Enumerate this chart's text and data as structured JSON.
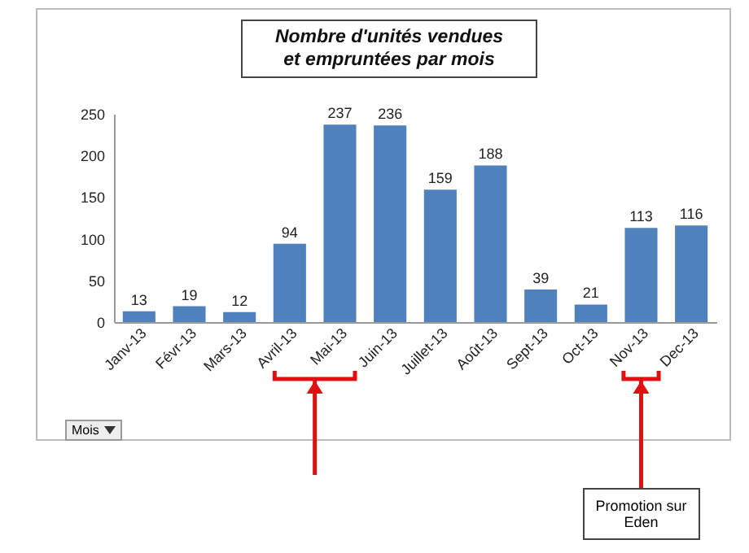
{
  "chart_data": {
    "type": "bar",
    "title": "Nombre d'unités vendues\net empruntées par mois",
    "categories": [
      "Janv-13",
      "Févr-13",
      "Mars-13",
      "Avril-13",
      "Mai-13",
      "Juin-13",
      "Juillet-13",
      "Août-13",
      "Sept-13",
      "Oct-13",
      "Nov-13",
      "Dec-13"
    ],
    "values": [
      13,
      19,
      12,
      94,
      237,
      236,
      159,
      188,
      39,
      21,
      113,
      116
    ],
    "color": "#4f81bd",
    "ylim": [
      0,
      250
    ],
    "yticks": [
      0,
      50,
      100,
      150,
      200,
      250
    ],
    "data_labels": true,
    "annotations": [
      "Promotion sur Eden",
      "Mois"
    ]
  }
}
